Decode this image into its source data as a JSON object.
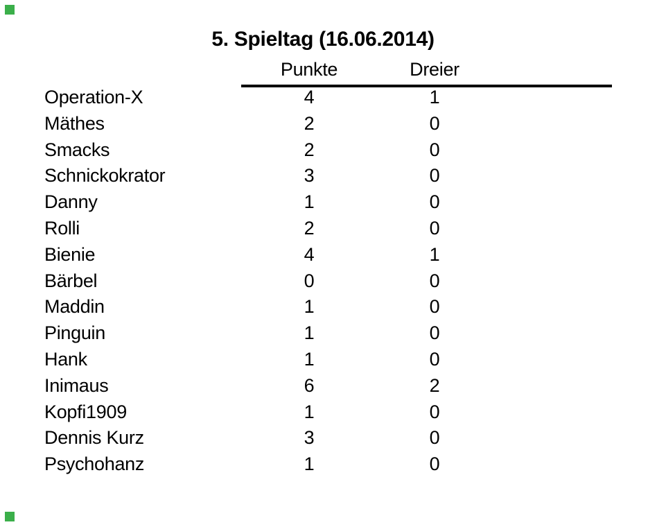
{
  "page": {
    "title": "5. Spieltag (16.06.2014)",
    "background_color": "#ffffff",
    "text_color": "#000000",
    "rule_color": "#000000",
    "corner_marker_color": "#3baf4a"
  },
  "table": {
    "columns": [
      {
        "label": "Punkte"
      },
      {
        "label": "Dreier"
      }
    ],
    "rows": [
      {
        "name": "Operation-X",
        "punkte": "4",
        "dreier": "1"
      },
      {
        "name": "Mäthes",
        "punkte": "2",
        "dreier": "0"
      },
      {
        "name": "Smacks",
        "punkte": "2",
        "dreier": "0"
      },
      {
        "name": "Schnickokrator",
        "punkte": "3",
        "dreier": "0"
      },
      {
        "name": "Danny",
        "punkte": "1",
        "dreier": "0"
      },
      {
        "name": "Rolli",
        "punkte": "2",
        "dreier": "0"
      },
      {
        "name": "Bienie",
        "punkte": "4",
        "dreier": "1"
      },
      {
        "name": "Bärbel",
        "punkte": "0",
        "dreier": "0"
      },
      {
        "name": "Maddin",
        "punkte": "1",
        "dreier": "0"
      },
      {
        "name": "Pinguin",
        "punkte": "1",
        "dreier": "0"
      },
      {
        "name": "Hank",
        "punkte": "1",
        "dreier": "0"
      },
      {
        "name": "Inimaus",
        "punkte": "6",
        "dreier": "2"
      },
      {
        "name": "Kopfi1909",
        "punkte": "1",
        "dreier": "0"
      },
      {
        "name": "Dennis Kurz",
        "punkte": "3",
        "dreier": "0"
      },
      {
        "name": "Psychohanz",
        "punkte": "1",
        "dreier": "0"
      }
    ]
  },
  "chart_data": {
    "type": "table",
    "title": "5. Spieltag (16.06.2014)",
    "columns": [
      "Punkte",
      "Dreier"
    ],
    "categories": [
      "Operation-X",
      "Mäthes",
      "Smacks",
      "Schnickokrator",
      "Danny",
      "Rolli",
      "Bienie",
      "Bärbel",
      "Maddin",
      "Pinguin",
      "Hank",
      "Inimaus",
      "Kopfi1909",
      "Dennis Kurz",
      "Psychohanz"
    ],
    "series": [
      {
        "name": "Punkte",
        "values": [
          4,
          2,
          2,
          3,
          1,
          2,
          4,
          0,
          1,
          1,
          1,
          6,
          1,
          3,
          1
        ]
      },
      {
        "name": "Dreier",
        "values": [
          1,
          0,
          0,
          0,
          0,
          0,
          1,
          0,
          0,
          0,
          0,
          2,
          0,
          0,
          0
        ]
      }
    ]
  }
}
